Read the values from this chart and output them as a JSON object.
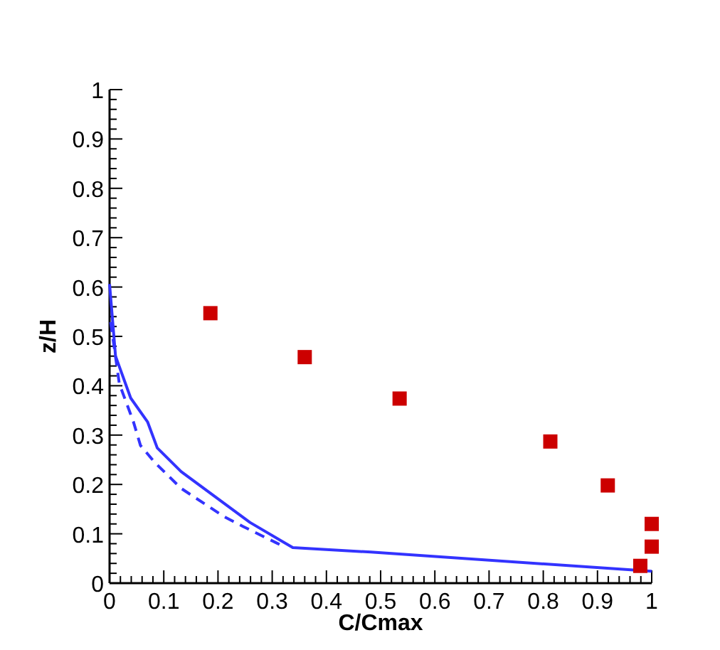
{
  "chart_data": {
    "type": "line",
    "xlabel": "C/Cmax",
    "ylabel": "z/H",
    "xlim": [
      0,
      1
    ],
    "ylim": [
      0,
      1
    ],
    "xticks": [
      0,
      {
        "value": 0.02,
        "label": null
      },
      {
        "value": 0.04,
        "label": null
      },
      {
        "value": 0.06,
        "label": null
      },
      {
        "value": 0.08,
        "label": null
      },
      0.1,
      {
        "value": 0.12,
        "label": null
      },
      {
        "value": 0.14,
        "label": null
      },
      {
        "value": 0.16,
        "label": null
      },
      {
        "value": 0.18,
        "label": null
      },
      0.2,
      {
        "value": 0.22,
        "label": null
      },
      {
        "value": 0.24,
        "label": null
      },
      {
        "value": 0.26,
        "label": null
      },
      {
        "value": 0.28,
        "label": null
      },
      0.3,
      {
        "value": 0.32,
        "label": null
      },
      {
        "value": 0.34,
        "label": null
      },
      {
        "value": 0.36,
        "label": null
      },
      {
        "value": 0.38,
        "label": null
      },
      0.4,
      {
        "value": 0.42,
        "label": null
      },
      {
        "value": 0.44,
        "label": null
      },
      {
        "value": 0.46,
        "label": null
      },
      {
        "value": 0.48,
        "label": null
      },
      0.5,
      {
        "value": 0.52,
        "label": null
      },
      {
        "value": 0.54,
        "label": null
      },
      {
        "value": 0.56,
        "label": null
      },
      {
        "value": 0.58,
        "label": null
      },
      0.6,
      {
        "value": 0.62,
        "label": null
      },
      {
        "value": 0.64,
        "label": null
      },
      {
        "value": 0.66,
        "label": null
      },
      {
        "value": 0.68,
        "label": null
      },
      0.7,
      {
        "value": 0.72,
        "label": null
      },
      {
        "value": 0.74,
        "label": null
      },
      {
        "value": 0.76,
        "label": null
      },
      {
        "value": 0.78,
        "label": null
      },
      0.8,
      {
        "value": 0.82,
        "label": null
      },
      {
        "value": 0.84,
        "label": null
      },
      {
        "value": 0.86,
        "label": null
      },
      {
        "value": 0.88,
        "label": null
      },
      0.9,
      {
        "value": 0.92,
        "label": null
      },
      {
        "value": 0.94,
        "label": null
      },
      {
        "value": 0.96,
        "label": null
      },
      {
        "value": 0.98,
        "label": null
      },
      1
    ],
    "yticks": [
      0,
      {
        "value": 0.02,
        "label": null
      },
      {
        "value": 0.04,
        "label": null
      },
      {
        "value": 0.06,
        "label": null
      },
      {
        "value": 0.08,
        "label": null
      },
      0.1,
      {
        "value": 0.12,
        "label": null
      },
      {
        "value": 0.14,
        "label": null
      },
      {
        "value": 0.16,
        "label": null
      },
      {
        "value": 0.18,
        "label": null
      },
      0.2,
      {
        "value": 0.22,
        "label": null
      },
      {
        "value": 0.24,
        "label": null
      },
      {
        "value": 0.26,
        "label": null
      },
      {
        "value": 0.28,
        "label": null
      },
      0.3,
      {
        "value": 0.32,
        "label": null
      },
      {
        "value": 0.34,
        "label": null
      },
      {
        "value": 0.36,
        "label": null
      },
      {
        "value": 0.38,
        "label": null
      },
      0.4,
      {
        "value": 0.42,
        "label": null
      },
      {
        "value": 0.44,
        "label": null
      },
      {
        "value": 0.46,
        "label": null
      },
      {
        "value": 0.48,
        "label": null
      },
      0.5,
      {
        "value": 0.52,
        "label": null
      },
      {
        "value": 0.54,
        "label": null
      },
      {
        "value": 0.56,
        "label": null
      },
      {
        "value": 0.58,
        "label": null
      },
      0.6,
      {
        "value": 0.62,
        "label": null
      },
      {
        "value": 0.64,
        "label": null
      },
      {
        "value": 0.66,
        "label": null
      },
      {
        "value": 0.68,
        "label": null
      },
      0.7,
      {
        "value": 0.72,
        "label": null
      },
      {
        "value": 0.74,
        "label": null
      },
      {
        "value": 0.76,
        "label": null
      },
      {
        "value": 0.78,
        "label": null
      },
      0.8,
      {
        "value": 0.82,
        "label": null
      },
      {
        "value": 0.84,
        "label": null
      },
      {
        "value": 0.86,
        "label": null
      },
      {
        "value": 0.88,
        "label": null
      },
      0.9,
      {
        "value": 0.92,
        "label": null
      },
      {
        "value": 0.94,
        "label": null
      },
      {
        "value": 0.96,
        "label": null
      },
      {
        "value": 0.98,
        "label": null
      },
      1
    ],
    "grid": false,
    "series": [
      {
        "line_style": "solid",
        "marker": "none",
        "color": "#3333ff",
        "x": [
          0,
          0.011,
          0.039,
          0.07,
          0.088,
          0.132,
          0.259,
          0.338,
          0.482,
          1
        ],
        "values": [
          0.606,
          0.46,
          0.375,
          0.327,
          0.274,
          0.226,
          0.123,
          0.072,
          0.063,
          0.024
        ]
      },
      {
        "line_style": "dashed",
        "marker": "none",
        "color": "#3333ff",
        "x": [
          0.002,
          0.018,
          0.044,
          0.057,
          0.083,
          0.132,
          0.211,
          0.246,
          0.307,
          0.325
        ],
        "values": [
          0.529,
          0.404,
          0.327,
          0.279,
          0.245,
          0.192,
          0.135,
          0.115,
          0.082,
          0.072
        ]
      },
      {
        "type": "scatter",
        "marker": "square",
        "color": "#cc0000",
        "x": [
          0.186,
          0.36,
          0.535,
          0.813,
          0.919,
          1,
          1,
          0.979
        ],
        "values": [
          0.547,
          0.458,
          0.374,
          0.287,
          0.198,
          0.12,
          0.074,
          0.035
        ]
      }
    ]
  }
}
